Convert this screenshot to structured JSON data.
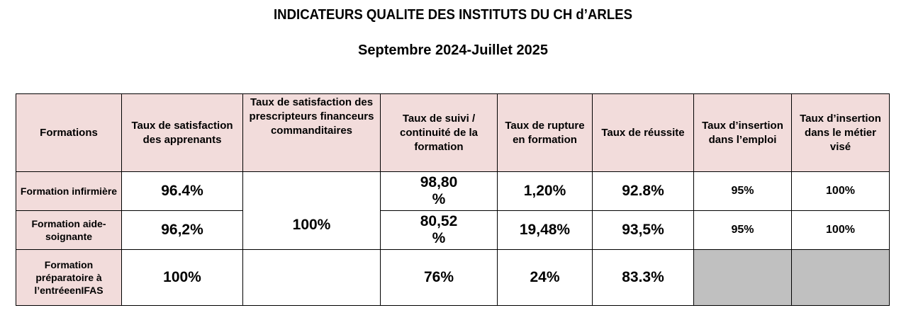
{
  "title": "INDICATEURS QUALITE DES INSTITUTS DU CH d’ARLES",
  "subtitle": "Septembre 2024-Juillet 2025",
  "table": {
    "headers": [
      "Formations",
      "Taux de satisfaction des apprenants",
      "Taux de satisfaction des prescripteurs financeurs commanditaires",
      "Taux de suivi / continuité de la formation",
      "Taux de rupture en formation",
      "Taux de réussite",
      "Taux d’insertion dans l’emploi",
      "Taux d’insertion dans le métier visé"
    ],
    "prescripteurs_value": "100%",
    "rows": [
      {
        "label": "Formation infirmière",
        "apprenants": "96.4%",
        "suivi_line1": "98,80",
        "suivi_line2": "%",
        "rupture": "1,20%",
        "reussite": "92.8%",
        "insertion_emploi": "95%",
        "insertion_metier": "100%"
      },
      {
        "label": "Formation aide-soignante",
        "apprenants": "96,2%",
        "suivi_line1": "80,52",
        "suivi_line2": "%",
        "rupture": "19,48%",
        "reussite": "93,5%",
        "insertion_emploi": "95%",
        "insertion_metier": "100%"
      },
      {
        "label": "Formation préparatoire à l’entréeenIFAS",
        "apprenants": "100%",
        "suivi": "76%",
        "rupture": "24%",
        "reussite": "83.3%",
        "insertion_emploi": "",
        "insertion_metier": ""
      }
    ]
  }
}
